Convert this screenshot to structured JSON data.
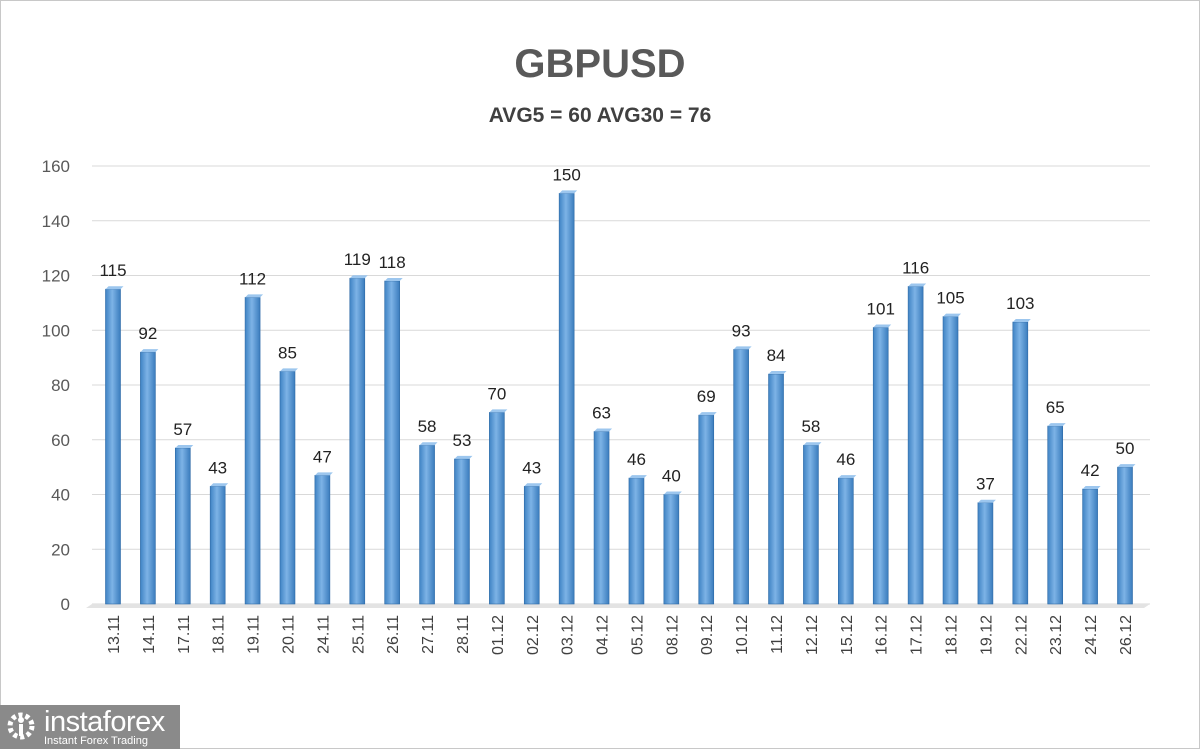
{
  "chart_data": {
    "type": "bar",
    "title": "GBPUSD",
    "subtitle": "AVG5 = 60 AVG30 = 76",
    "xlabel": "",
    "ylabel": "",
    "ylim": [
      0,
      160
    ],
    "yticks": [
      0,
      20,
      40,
      60,
      80,
      100,
      120,
      140,
      160
    ],
    "grid": true,
    "categories": [
      "13.11",
      "14.11",
      "17.11",
      "18.11",
      "19.11",
      "20.11",
      "24.11",
      "25.11",
      "26.11",
      "27.11",
      "28.11",
      "01.12",
      "02.12",
      "03.12",
      "04.12",
      "05.12",
      "08.12",
      "09.12",
      "10.12",
      "11.12",
      "12.12",
      "15.12",
      "16.12",
      "17.12",
      "18.12",
      "19.12",
      "22.12",
      "23.12",
      "24.12",
      "26.12"
    ],
    "values": [
      115,
      92,
      57,
      43,
      112,
      85,
      47,
      119,
      118,
      58,
      53,
      70,
      43,
      150,
      63,
      46,
      40,
      69,
      93,
      84,
      58,
      46,
      101,
      116,
      105,
      37,
      103,
      65,
      42,
      50
    ],
    "bar_color": "#5b9bd5"
  },
  "logo": {
    "name": "instaforex",
    "tagline": "Instant Forex Trading"
  }
}
